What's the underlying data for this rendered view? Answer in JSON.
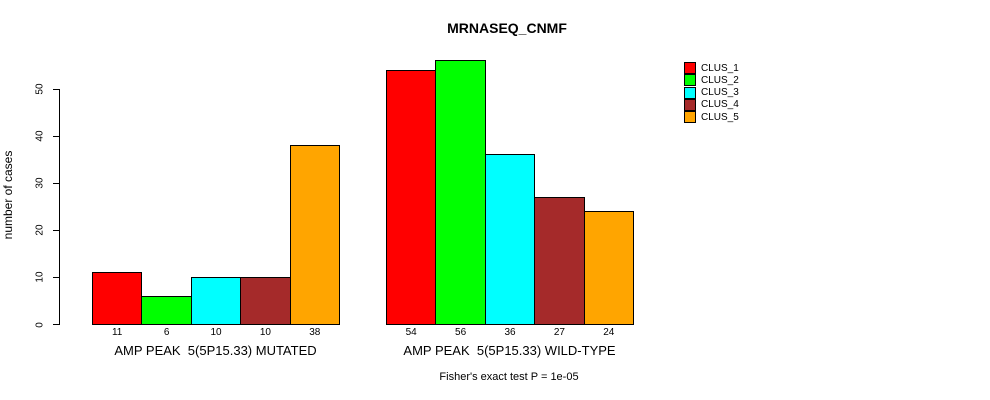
{
  "title": "MRNASEQ_CNMF",
  "ylabel": "number of cases",
  "footnote": "Fisher's exact test P = 1e-05",
  "colors": {
    "background": "#FFFFFF",
    "axis": "#000000",
    "bar_border": "#000000"
  },
  "legend": {
    "position": "right",
    "entries": [
      {
        "label": "CLUS_1",
        "color": "#FF0000"
      },
      {
        "label": "CLUS_2",
        "color": "#00FF00"
      },
      {
        "label": "CLUS_3",
        "color": "#00FFFF"
      },
      {
        "label": "CLUS_4",
        "color": "#A52A2A"
      },
      {
        "label": "CLUS_5",
        "color": "#FFA500"
      }
    ]
  },
  "chart_data": {
    "type": "bar",
    "title": "MRNASEQ_CNMF",
    "xlabel": "",
    "ylabel": "number of cases",
    "ylim": [
      0,
      50
    ],
    "yticks": [
      0,
      10,
      20,
      30,
      40,
      50
    ],
    "grid": false,
    "legend_position": "right",
    "categories": [
      "AMP PEAK  5(5P15.33) MUTATED",
      "AMP PEAK  5(5P15.33) WILD-TYPE"
    ],
    "series": [
      {
        "name": "CLUS_1",
        "color": "#FF0000",
        "values": [
          11,
          54
        ]
      },
      {
        "name": "CLUS_2",
        "color": "#00FF00",
        "values": [
          6,
          56
        ]
      },
      {
        "name": "CLUS_3",
        "color": "#00FFFF",
        "values": [
          10,
          36
        ]
      },
      {
        "name": "CLUS_4",
        "color": "#A52A2A",
        "values": [
          10,
          27
        ]
      },
      {
        "name": "CLUS_5",
        "color": "#FFA500",
        "values": [
          38,
          24
        ]
      }
    ],
    "bar_value_labels": {
      "AMP PEAK  5(5P15.33) MUTATED": [
        11,
        6,
        10,
        10,
        38
      ],
      "AMP PEAK  5(5P15.33) WILD-TYPE": [
        54,
        56,
        36,
        27,
        24
      ]
    },
    "annotation": "Fisher's exact test P = 1e-05"
  }
}
